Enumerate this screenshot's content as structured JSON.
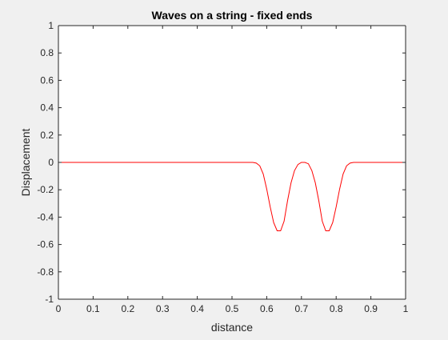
{
  "chart_data": {
    "type": "line",
    "title": "Waves on a string - fixed ends",
    "xlabel": "distance",
    "ylabel": "Displacement",
    "xlim": [
      0,
      1
    ],
    "ylim": [
      -1,
      1
    ],
    "xticks": [
      0,
      0.1,
      0.2,
      0.3,
      0.4,
      0.5,
      0.6,
      0.7,
      0.8,
      0.9,
      1
    ],
    "xtick_labels": [
      "0",
      "0.1",
      "0.2",
      "0.3",
      "0.4",
      "0.5",
      "0.6",
      "0.7",
      "0.8",
      "0.9",
      "1"
    ],
    "yticks": [
      -1,
      -0.8,
      -0.6,
      -0.4,
      -0.2,
      0,
      0.2,
      0.4,
      0.6,
      0.8,
      1
    ],
    "ytick_labels": [
      "-1",
      "-0.8",
      "-0.6",
      "-0.4",
      "-0.2",
      "0",
      "0.2",
      "0.4",
      "0.6",
      "0.8",
      "1"
    ],
    "grid": false,
    "box": true,
    "series": [
      {
        "color": "#ff0000",
        "x": [
          0,
          0.1,
          0.2,
          0.3,
          0.4,
          0.5,
          0.55,
          0.56,
          0.57,
          0.58,
          0.59,
          0.6,
          0.61,
          0.62,
          0.63,
          0.64,
          0.65,
          0.66,
          0.67,
          0.68,
          0.69,
          0.7,
          0.71,
          0.72,
          0.73,
          0.74,
          0.75,
          0.76,
          0.77,
          0.78,
          0.79,
          0.8,
          0.81,
          0.82,
          0.83,
          0.84,
          0.85,
          0.86,
          0.87,
          0.88,
          0.9,
          1
        ],
        "y": [
          0,
          0,
          0,
          0,
          0,
          0,
          0,
          0,
          -0.005,
          -0.025,
          -0.085,
          -0.195,
          -0.325,
          -0.44,
          -0.5,
          -0.5,
          -0.43,
          -0.28,
          -0.15,
          -0.06,
          -0.015,
          0,
          0,
          -0.01,
          -0.06,
          -0.15,
          -0.28,
          -0.43,
          -0.5,
          -0.5,
          -0.44,
          -0.325,
          -0.195,
          -0.085,
          -0.025,
          -0.005,
          0,
          0,
          0,
          0,
          0,
          0
        ]
      }
    ]
  }
}
